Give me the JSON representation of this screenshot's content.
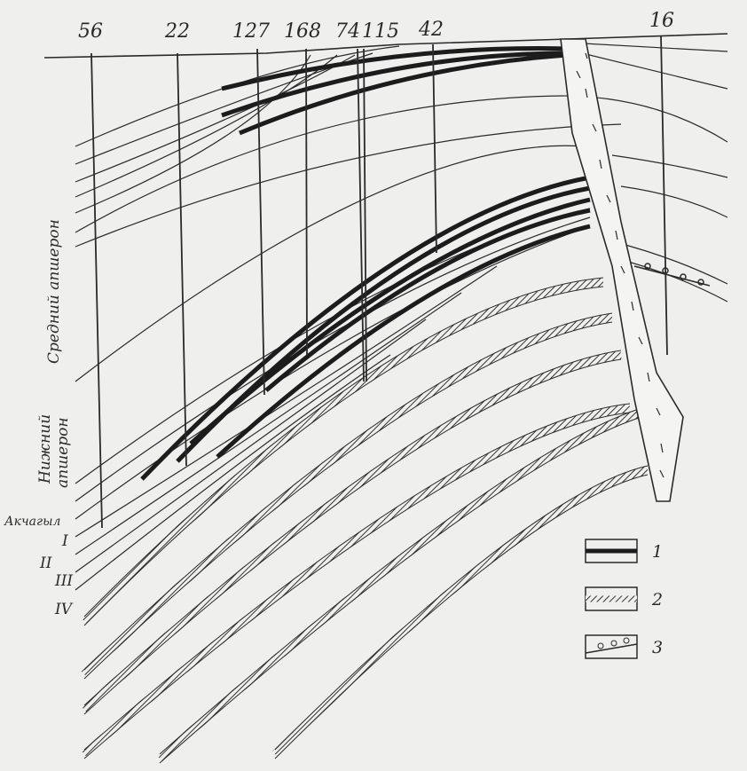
{
  "wells": [
    {
      "label": "56"
    },
    {
      "label": "22"
    },
    {
      "label": "127"
    },
    {
      "label": "168"
    },
    {
      "label": "74"
    },
    {
      "label": "115"
    },
    {
      "label": "42"
    },
    {
      "label": "16"
    }
  ],
  "stages": {
    "middle_apsheron": "Средний апшерон",
    "lower_apsheron_line1": "Нижний",
    "lower_apsheron_line2": "апшерон",
    "akchagyl": "Акчагыл"
  },
  "horizons": [
    "I",
    "II",
    "III",
    "IV"
  ],
  "legend": [
    {
      "label": "1"
    },
    {
      "label": "2"
    },
    {
      "label": "3"
    }
  ],
  "colors": {
    "background": "#efefed",
    "ink": "#2a2a2a",
    "fault_fill": "#f4f4f2"
  }
}
